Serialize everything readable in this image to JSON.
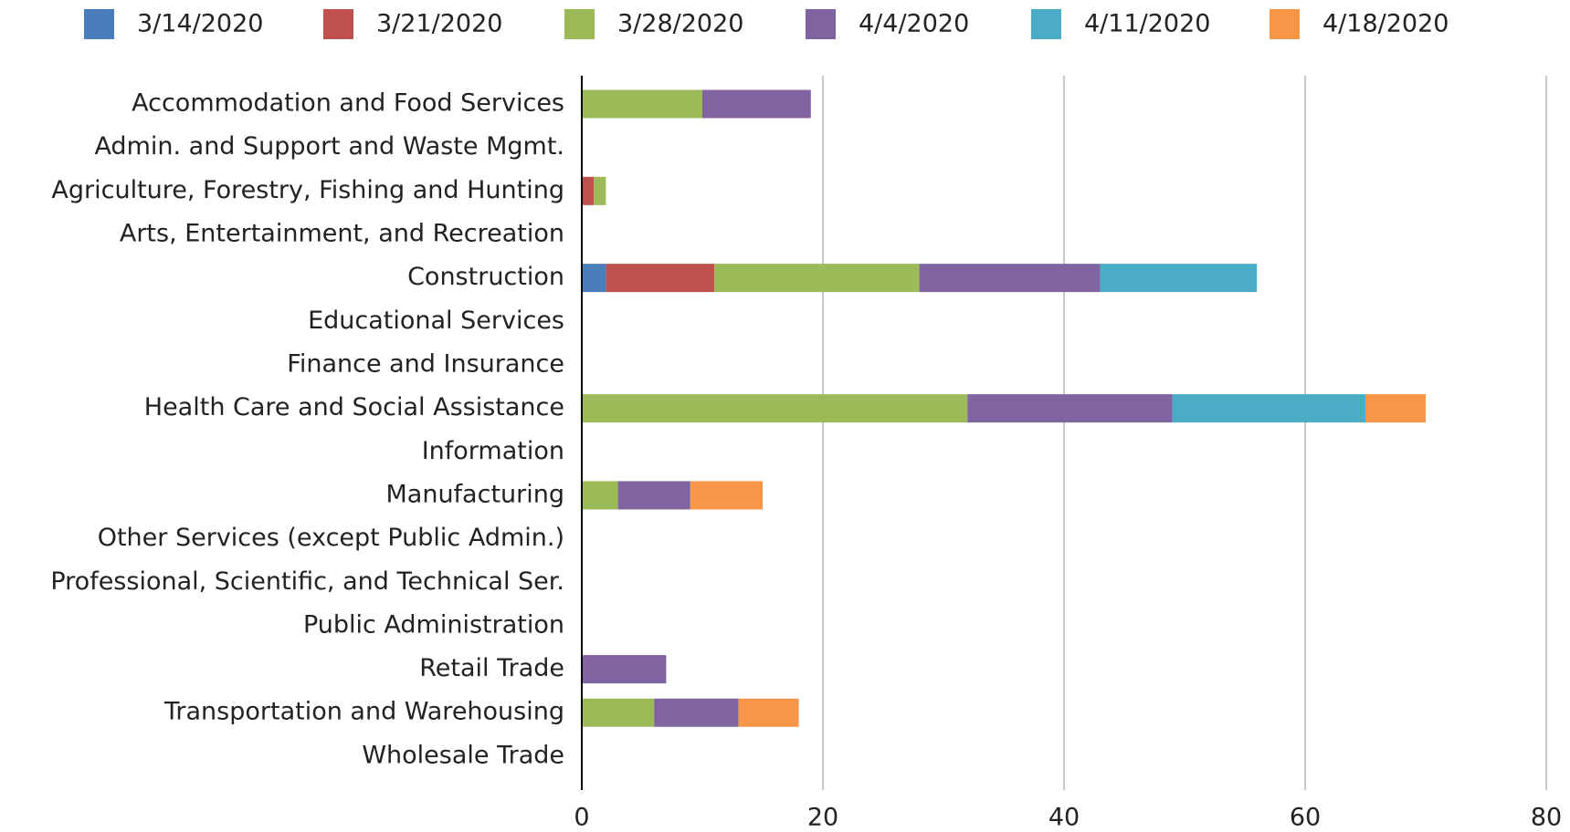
{
  "chart_data": {
    "type": "bar",
    "orientation": "horizontal",
    "stacked": true,
    "categories": [
      "Accommodation and Food Services",
      "Admin. and Support and Waste Mgmt.",
      "Agriculture, Forestry, Fishing and Hunting",
      "Arts, Entertainment, and Recreation",
      "Construction",
      "Educational Services",
      "Finance and Insurance",
      "Health Care and Social Assistance",
      "Information",
      "Manufacturing",
      "Other Services (except Public Admin.)",
      "Professional, Scientific, and Technical Ser.",
      "Public Administration",
      "Retail Trade",
      "Transportation and Warehousing",
      "Wholesale Trade"
    ],
    "series": [
      {
        "name": "3/14/2020",
        "color": "#4a7ebb",
        "values": [
          0,
          0,
          0,
          0,
          2,
          0,
          0,
          0,
          0,
          0,
          0,
          0,
          0,
          0,
          0,
          0
        ]
      },
      {
        "name": "3/21/2020",
        "color": "#c0504d",
        "values": [
          0,
          0,
          1,
          0,
          9,
          0,
          0,
          0,
          0,
          0,
          0,
          0,
          0,
          0,
          0,
          0
        ]
      },
      {
        "name": "3/28/2020",
        "color": "#9bbb59",
        "values": [
          10,
          0,
          1,
          0,
          17,
          0,
          0,
          32,
          0,
          3,
          0,
          0,
          0,
          0,
          6,
          0
        ]
      },
      {
        "name": "4/4/2020",
        "color": "#8064a2",
        "values": [
          9,
          0,
          0,
          0,
          15,
          0,
          0,
          17,
          0,
          6,
          0,
          0,
          0,
          7,
          7,
          0
        ]
      },
      {
        "name": "4/11/2020",
        "color": "#4bacc6",
        "values": [
          0,
          0,
          0,
          0,
          13,
          0,
          0,
          16,
          0,
          0,
          0,
          0,
          0,
          0,
          0,
          0
        ]
      },
      {
        "name": "4/18/2020",
        "color": "#f79646",
        "values": [
          0,
          0,
          0,
          0,
          0,
          0,
          0,
          5,
          0,
          6,
          0,
          0,
          0,
          0,
          5,
          0
        ]
      }
    ],
    "xlim": [
      0,
      80
    ],
    "xticks": [
      0,
      20,
      40,
      60,
      80
    ],
    "grid": true,
    "legend": "top"
  }
}
